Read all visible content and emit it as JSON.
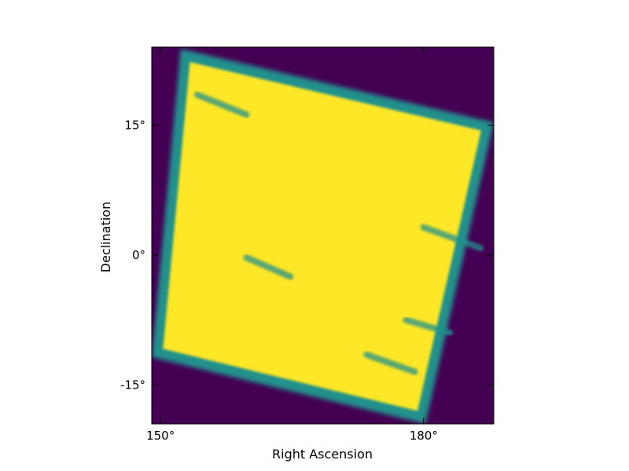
{
  "chart_data": {
    "type": "heatmap",
    "title": "",
    "xlabel": "Right Ascension",
    "ylabel": "Declination",
    "xlim": [
      149,
      188
    ],
    "ylim": [
      -19.5,
      24
    ],
    "x_ticks": [
      {
        "value": 150,
        "label": "150°"
      },
      {
        "value": 180,
        "label": "180°"
      }
    ],
    "y_ticks": [
      {
        "value": 15,
        "label": "15°"
      },
      {
        "value": 0,
        "label": "0°"
      },
      {
        "value": -15,
        "label": "-15°"
      }
    ],
    "grid": false,
    "colormap": "viridis",
    "colors": {
      "background": "#440154",
      "coverage_full": "#fde725",
      "coverage_edge": "#21918c"
    },
    "footprint_corners": [
      {
        "ra": 152.3,
        "dec": 23.8
      },
      {
        "ra": 188.0,
        "dec": 15.3
      },
      {
        "ra": 180.2,
        "dec": -19.5
      },
      {
        "ra": 149.0,
        "dec": -11.8
      }
    ],
    "streaks": [
      {
        "ra_start": 154.2,
        "dec_start": 18.5,
        "ra_end": 159.8,
        "dec_end": 16.2
      },
      {
        "ra_start": 159.8,
        "dec_start": -0.3,
        "ra_end": 164.8,
        "dec_end": -2.5
      },
      {
        "ra_start": 180.0,
        "dec_start": 3.2,
        "ra_end": 186.5,
        "dec_end": 0.8
      },
      {
        "ra_start": 178.0,
        "dec_start": -7.5,
        "ra_end": 183.0,
        "dec_end": -9.0
      },
      {
        "ra_start": 173.5,
        "dec_start": -11.5,
        "ra_end": 179.0,
        "dec_end": -13.5
      }
    ]
  }
}
